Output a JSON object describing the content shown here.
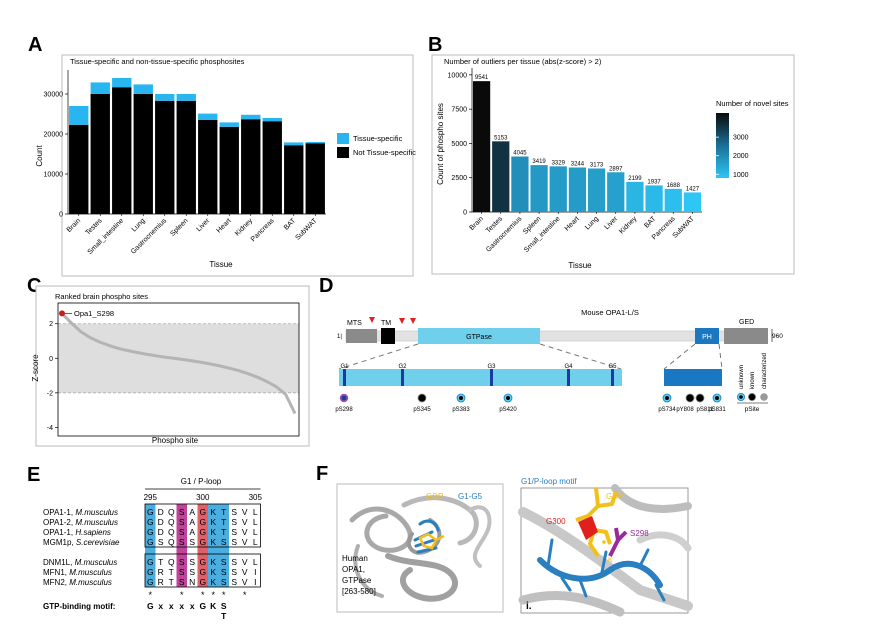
{
  "panels": {
    "a": "A",
    "b": "B",
    "c": "C",
    "d": "D",
    "e": "E",
    "f": "F"
  },
  "panel_a": {
    "chart_data": {
      "type": "bar",
      "title": "Tissue-specific and non-tissue-specific phosphosites",
      "xlabel": "Tissue",
      "ylabel": "Count",
      "ylim": [
        0,
        36000
      ],
      "yticks": [
        0,
        10000,
        20000,
        30000
      ],
      "categories": [
        "Brain",
        "Testes",
        "Small_intestine",
        "Lung",
        "Gastrocnemius",
        "Spleen",
        "Liver",
        "Heart",
        "Kidney",
        "Pancreas",
        "BAT",
        "SubWAT"
      ],
      "series": [
        {
          "name": "Not Tissue-specific",
          "color": "#000000",
          "values": [
            22300,
            30000,
            31700,
            30000,
            28300,
            28300,
            23500,
            21800,
            23700,
            23200,
            17200,
            17700
          ]
        },
        {
          "name": "Tissue-specific",
          "color": "#29b6f0",
          "values": [
            4700,
            2900,
            2300,
            2400,
            1700,
            1700,
            1600,
            1100,
            1100,
            800,
            700,
            300
          ]
        }
      ],
      "legend": "right"
    }
  },
  "panel_b": {
    "chart_data": {
      "type": "bar",
      "title": "Number of outliers per tissue (abs(z-score) > 2)",
      "xlabel": "Tissue",
      "ylabel": "Count of phospho sites",
      "ylim": [
        0,
        10500
      ],
      "yticks": [
        0,
        2500,
        5000,
        7500,
        10000
      ],
      "categories": [
        "Brain",
        "Testes",
        "Gastrocnemius",
        "Spleen",
        "Small_intestine",
        "Heart",
        "Lung",
        "Liver",
        "Kidney",
        "BAT",
        "Pancreas",
        "SubWAT"
      ],
      "values": [
        9541,
        5153,
        4045,
        3419,
        3329,
        3244,
        3173,
        2897,
        2199,
        1937,
        1688,
        1427
      ],
      "novel_sites": [
        4300,
        3600,
        1900,
        1700,
        1650,
        1650,
        1600,
        1550,
        1150,
        1050,
        950,
        800
      ],
      "colorbar": {
        "title": "Number of novel sites",
        "ticks": [
          1000,
          2000,
          3000
        ],
        "low_color": "#2ec6f5",
        "high_color": "#0a0a0a",
        "range": [
          800,
          4300
        ]
      }
    }
  },
  "panel_c": {
    "chart_data": {
      "type": "scatter",
      "title": "Ranked brain phospho sites",
      "xlabel": "Phospho site",
      "ylabel": "Z-score",
      "ylim": [
        -4.5,
        3.2
      ],
      "yticks": [
        -4,
        -2,
        0,
        2
      ],
      "band": [
        -2,
        2
      ],
      "highlight": {
        "label": "Opa1_S298",
        "z": 2.6
      },
      "curve_z": [
        2.6,
        2.05,
        1.55,
        1.2,
        0.95,
        0.75,
        0.58,
        0.45,
        0.34,
        0.24,
        0.15,
        0.07,
        0.0,
        -0.07,
        -0.15,
        -0.24,
        -0.34,
        -0.45,
        -0.58,
        -0.72,
        -0.9,
        -1.1,
        -1.35,
        -1.65,
        -2.1,
        -3.2
      ]
    }
  },
  "panel_d": {
    "title": "Mouse OPA1-L/S",
    "start": "1|",
    "end": "960",
    "domains": {
      "mts": "MTS",
      "tm": "TM",
      "gtpase": "GTPase",
      "ph": "PH",
      "ged": "GED"
    },
    "motifs": [
      "G1",
      "G2",
      "G3",
      "G4",
      "G5"
    ],
    "gtpase_sites": [
      "pS298",
      "pS345",
      "pS383",
      "pS420"
    ],
    "ph_sites": [
      "pS734",
      "pY808",
      "pS811",
      "pS831"
    ],
    "legend": {
      "unknown": "unknown",
      "known": "known",
      "characterized": "characterized",
      "psite": "pSite"
    }
  },
  "panel_e": {
    "header": "G1 / P-loop",
    "positions": [
      "295",
      "300",
      "305"
    ],
    "rows": [
      {
        "name": "OPA1-1, ",
        "species": "M.musculus",
        "seq": "GDQSAGKTSVL"
      },
      {
        "name": "OPA1-2, ",
        "species": "M.musculus",
        "seq": "GDQSAGKTSVL"
      },
      {
        "name": "OPA1-1, ",
        "species": "H.sapiens",
        "seq": "GDQSAGKTSVL"
      },
      {
        "name": "MGM1p, ",
        "species": "S.cerevisiae",
        "seq": "GSQSSGKSSVL"
      },
      {
        "name": "DNM1L, ",
        "species": "M.musculus",
        "seq": "GTQSSGKSSVL"
      },
      {
        "name": "MFN1, ",
        "species": "M.musculus",
        "seq": "GRTSSGKSSVI"
      },
      {
        "name": "MFN2, ",
        "species": "M.musculus",
        "seq": "GRTSNGKSSVI"
      }
    ],
    "stars": [
      "*",
      "",
      "",
      "*",
      "",
      "*",
      "*",
      "*",
      "",
      "*",
      ""
    ],
    "motif_label": "GTP-binding motif:",
    "motif_seq": [
      "G",
      "x",
      "x",
      "x",
      "x",
      "G",
      "K",
      "S",
      "",
      "",
      ""
    ],
    "motif_alt": "T",
    "colors": {
      "blue": "#4aaee0",
      "magenta": "#c0449a",
      "red": "#e0606a"
    }
  },
  "panel_f": {
    "left": {
      "gdp": "GDP",
      "g1g5": "G1-G5",
      "label": [
        "Human",
        "OPA1,",
        "GTPase",
        "[263-580]"
      ]
    },
    "right": {
      "title": "G1/P-loop motif",
      "gdp": "GDP",
      "g300": "G300",
      "s298": "S298",
      "k": "K",
      "roman": "i."
    },
    "colors": {
      "gdp": "#f2c018",
      "g1g5": "#2a7fc0",
      "s298": "#9a2a9a",
      "g300": "#e0201c"
    }
  }
}
